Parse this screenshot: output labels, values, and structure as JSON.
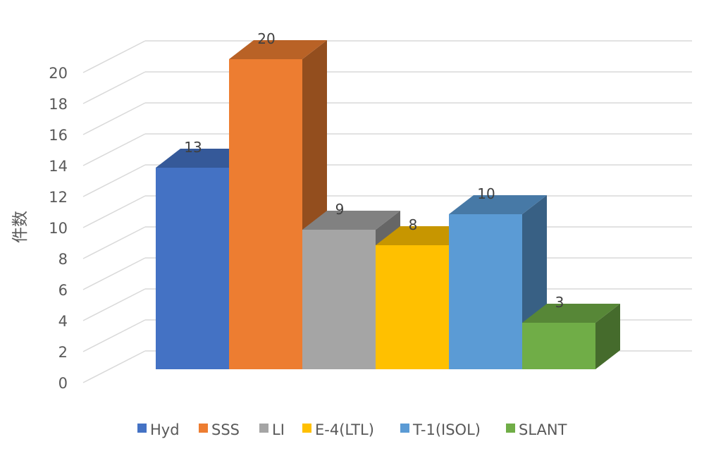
{
  "chart_data": {
    "type": "bar",
    "style": "3d-clustered-column",
    "ylabel": "件数",
    "ylim": [
      0,
      20
    ],
    "yticks": [
      "0",
      "2",
      "4",
      "6",
      "8",
      "10",
      "12",
      "14",
      "16",
      "18",
      "20"
    ],
    "grid": true,
    "legend_position": "bottom",
    "series": [
      {
        "name": "Hyd",
        "value": 13,
        "label": "13",
        "color": "#4472C4"
      },
      {
        "name": "SSS",
        "value": 20,
        "label": "20",
        "color": "#ED7D31"
      },
      {
        "name": "LI",
        "value": 9,
        "label": "9",
        "color": "#A5A5A5"
      },
      {
        "name": "E-4(LTL)",
        "value": 8,
        "label": "8",
        "color": "#FFC000"
      },
      {
        "name": "T-1(ISOL)",
        "value": 10,
        "label": "10",
        "color": "#5B9BD5"
      },
      {
        "name": "SLANT",
        "value": 3,
        "label": "3",
        "color": "#70AD47"
      }
    ]
  }
}
